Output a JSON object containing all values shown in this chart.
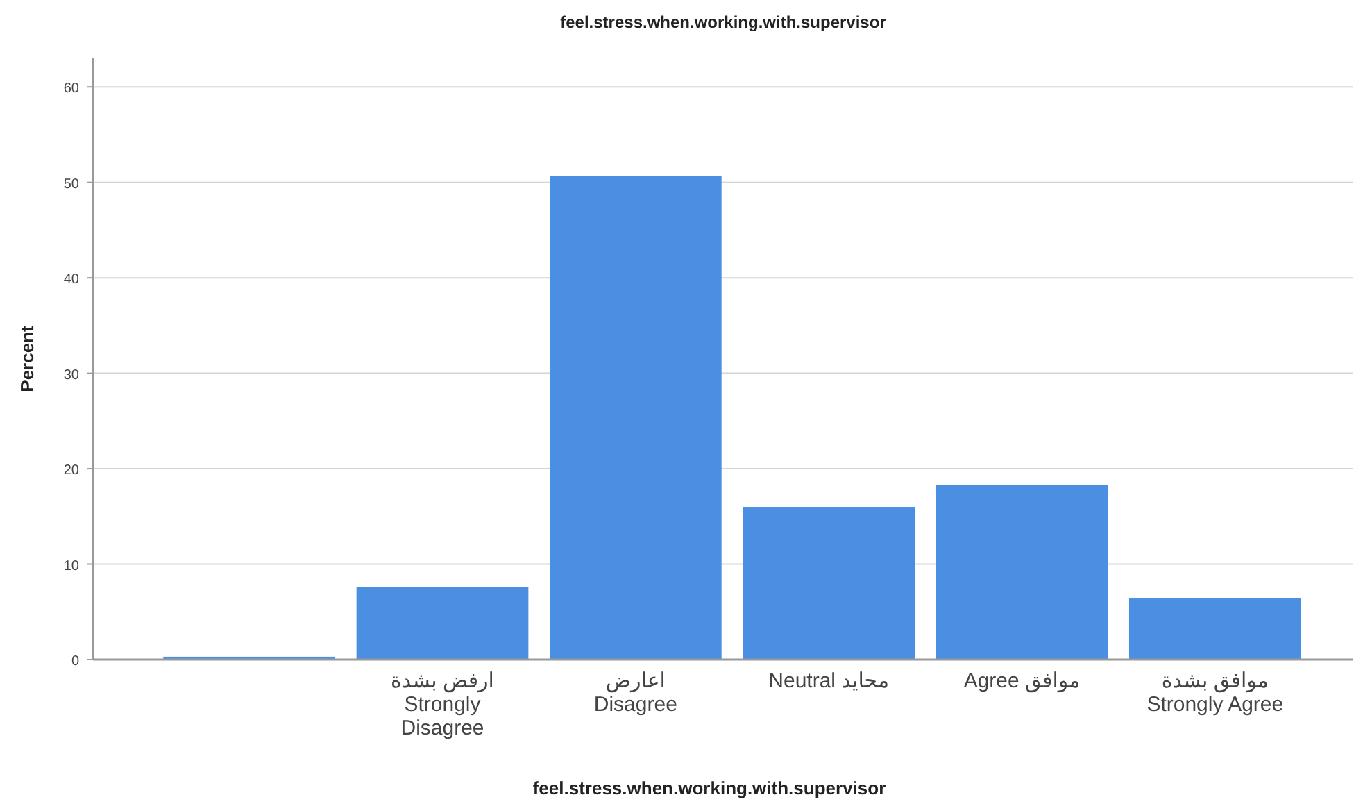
{
  "chart_data": {
    "type": "bar",
    "title": "feel.stress.when.working.with.supervisor",
    "xlabel": "feel.stress.when.working.with.supervisor",
    "ylabel": "Percent",
    "categories": [
      null,
      "ارفض بشدة\nStrongly\nDisagree",
      "اعارض\nDisagree",
      "Neutral محايد",
      "Agree موافق",
      "موافق بشدة\nStrongly Agree"
    ],
    "values": [
      0.3,
      7.6,
      50.7,
      16.0,
      18.3,
      6.4
    ],
    "color": "#4a8fe2",
    "ylim": [
      0,
      63
    ],
    "yticks": [
      0,
      10,
      20,
      30,
      40,
      50,
      60
    ],
    "grid": "y"
  }
}
